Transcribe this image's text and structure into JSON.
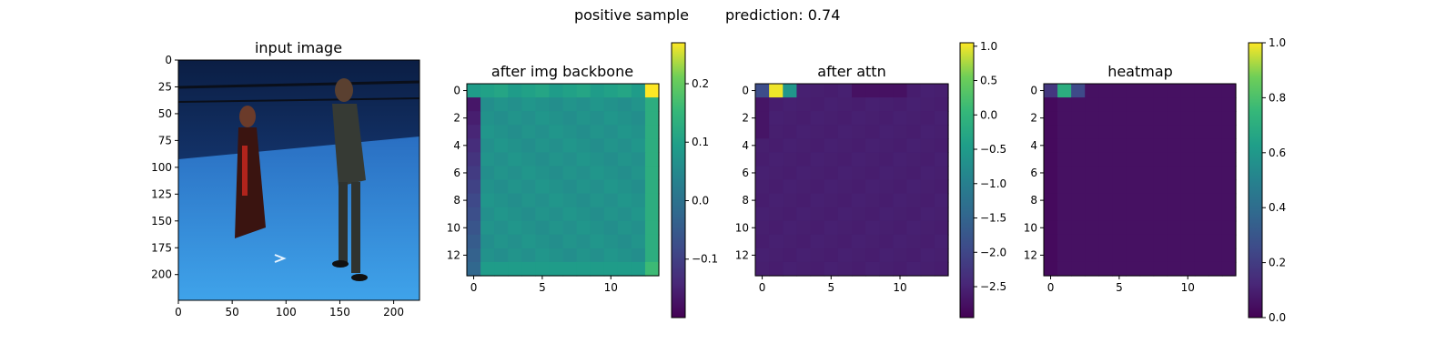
{
  "figure": {
    "suptitle_left": "positive sample",
    "suptitle_right": "prediction: 0.74"
  },
  "chart_data": [
    {
      "type": "image",
      "title": "input image",
      "image_description_visible": "photo of two people standing in a blue studio",
      "xticks": [
        0,
        50,
        100,
        150,
        200
      ],
      "yticks": [
        0,
        25,
        50,
        75,
        100,
        125,
        150,
        175,
        200
      ],
      "xlim": [
        0,
        224
      ],
      "ylim": [
        224,
        0
      ]
    },
    {
      "type": "heatmap",
      "title": "after img backbone",
      "colormap": "viridis",
      "xticks": [
        0,
        5,
        10
      ],
      "yticks": [
        0,
        2,
        4,
        6,
        8,
        10,
        12
      ],
      "grid": [
        14,
        14
      ],
      "vmin": -0.2,
      "vmax": 0.27,
      "colorbar_ticks": [
        0.2,
        0.1,
        0.0,
        -0.1
      ],
      "colorbar_tick_labels": [
        "0.2",
        "0.1",
        "0.0",
        "−0.1"
      ],
      "notable_values": {
        "top_row": 0.1,
        "top_right": 0.27,
        "left_column_low": -0.18,
        "right_column": 0.13,
        "interior": 0.06
      }
    },
    {
      "type": "heatmap",
      "title": "after attn",
      "colormap": "viridis",
      "xticks": [
        0,
        5,
        10
      ],
      "yticks": [
        0,
        2,
        4,
        6,
        8,
        10,
        12
      ],
      "grid": [
        14,
        14
      ],
      "vmin": -2.95,
      "vmax": 1.05,
      "colorbar_ticks": [
        1.0,
        0.5,
        0.0,
        -0.5,
        -1.0,
        -1.5,
        -2.0,
        -2.5
      ],
      "colorbar_tick_labels": [
        "1.0",
        "0.5",
        "0.0",
        "−0.5",
        "−1.0",
        "−1.5",
        "−2.0",
        "−2.5"
      ],
      "notable_values": {
        "cell_0_0": -1.9,
        "cell_0_1": 1.0,
        "cell_0_2": -0.6,
        "background": -2.55
      }
    },
    {
      "type": "heatmap",
      "title": "heatmap",
      "colormap": "viridis",
      "xticks": [
        0,
        5,
        10
      ],
      "yticks": [
        0,
        2,
        4,
        6,
        8,
        10,
        12
      ],
      "grid": [
        14,
        14
      ],
      "vmin": 0.0,
      "vmax": 1.0,
      "colorbar_ticks": [
        1.0,
        0.8,
        0.6,
        0.4,
        0.2,
        0.0
      ],
      "colorbar_tick_labels": [
        "1.0",
        "0.8",
        "0.6",
        "0.4",
        "0.2",
        "0.0"
      ],
      "notable_values": {
        "cell_0_0": 0.18,
        "cell_0_1": 0.7,
        "cell_0_2": 0.25,
        "background": 0.05
      }
    }
  ]
}
